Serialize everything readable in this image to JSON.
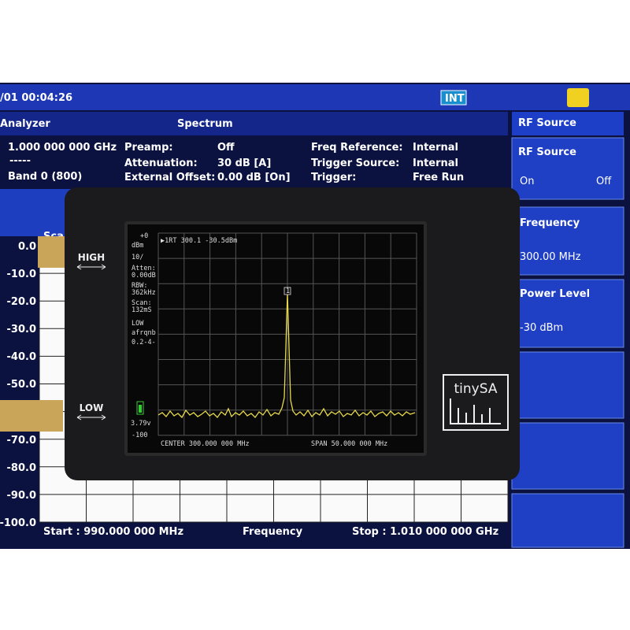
{
  "analyzer": {
    "clock": "/01 00:04:26",
    "status_badge": "INT",
    "mode": "Analyzer",
    "view": "Spectrum",
    "center": "1.000 000 000 GHz",
    "dash": "-----",
    "band": "Band 0 (800)",
    "settings": [
      {
        "label": "Preamp:",
        "value": "Off"
      },
      {
        "label": "Attenuation:",
        "value": "30 dB  [A]"
      },
      {
        "label": "External Offset:",
        "value": "0.00 dB  [On]"
      },
      {
        "label": "Freq Reference:",
        "value": "Internal"
      },
      {
        "label": "Trigger Source:",
        "value": "Internal"
      },
      {
        "label": "Trigger:",
        "value": "Free Run"
      }
    ],
    "trace_title": "Sca",
    "y_axis_labels": [
      "0.0",
      "-10.0",
      "-20.0",
      "-30.0",
      "-40.0",
      "-50.0",
      "-70.0",
      "-80.0",
      "-90.0",
      "-100.0"
    ],
    "start": "Start : 990.000 000 MHz",
    "x_label": "Frequency",
    "stop": "Stop : 1.010 000 000 GHz"
  },
  "side_panel": {
    "header": "RF Source",
    "source": {
      "label": "RF Source",
      "on": "On",
      "off": "Off"
    },
    "frequency": {
      "label": "Frequency",
      "value": "300.00 MHz"
    },
    "power": {
      "label": "Power Level",
      "value": "-30 dBm"
    }
  },
  "device": {
    "high": "HIGH",
    "low": "LOW",
    "brand": "tinySA",
    "screen": {
      "marker_readout": "▶1RT  300.1 -30.5dBm",
      "marker_id": "1",
      "ref": "+0",
      "unit": "dBm",
      "scale": "10/",
      "atten_label": "Atten:",
      "atten_value": "0.00dB",
      "rbw_label": "RBW:",
      "rbw_value": "362kHz",
      "scan_label": "Scan:",
      "scan_value": "132mS",
      "mode": "LOW",
      "flags": "afrqnb",
      "version": "0.2-4-",
      "battery": "3.79v",
      "bottom": "-100",
      "center": "CENTER 300.000 000 MHz",
      "span": "SPAN 50.000 000 MHz"
    }
  }
}
